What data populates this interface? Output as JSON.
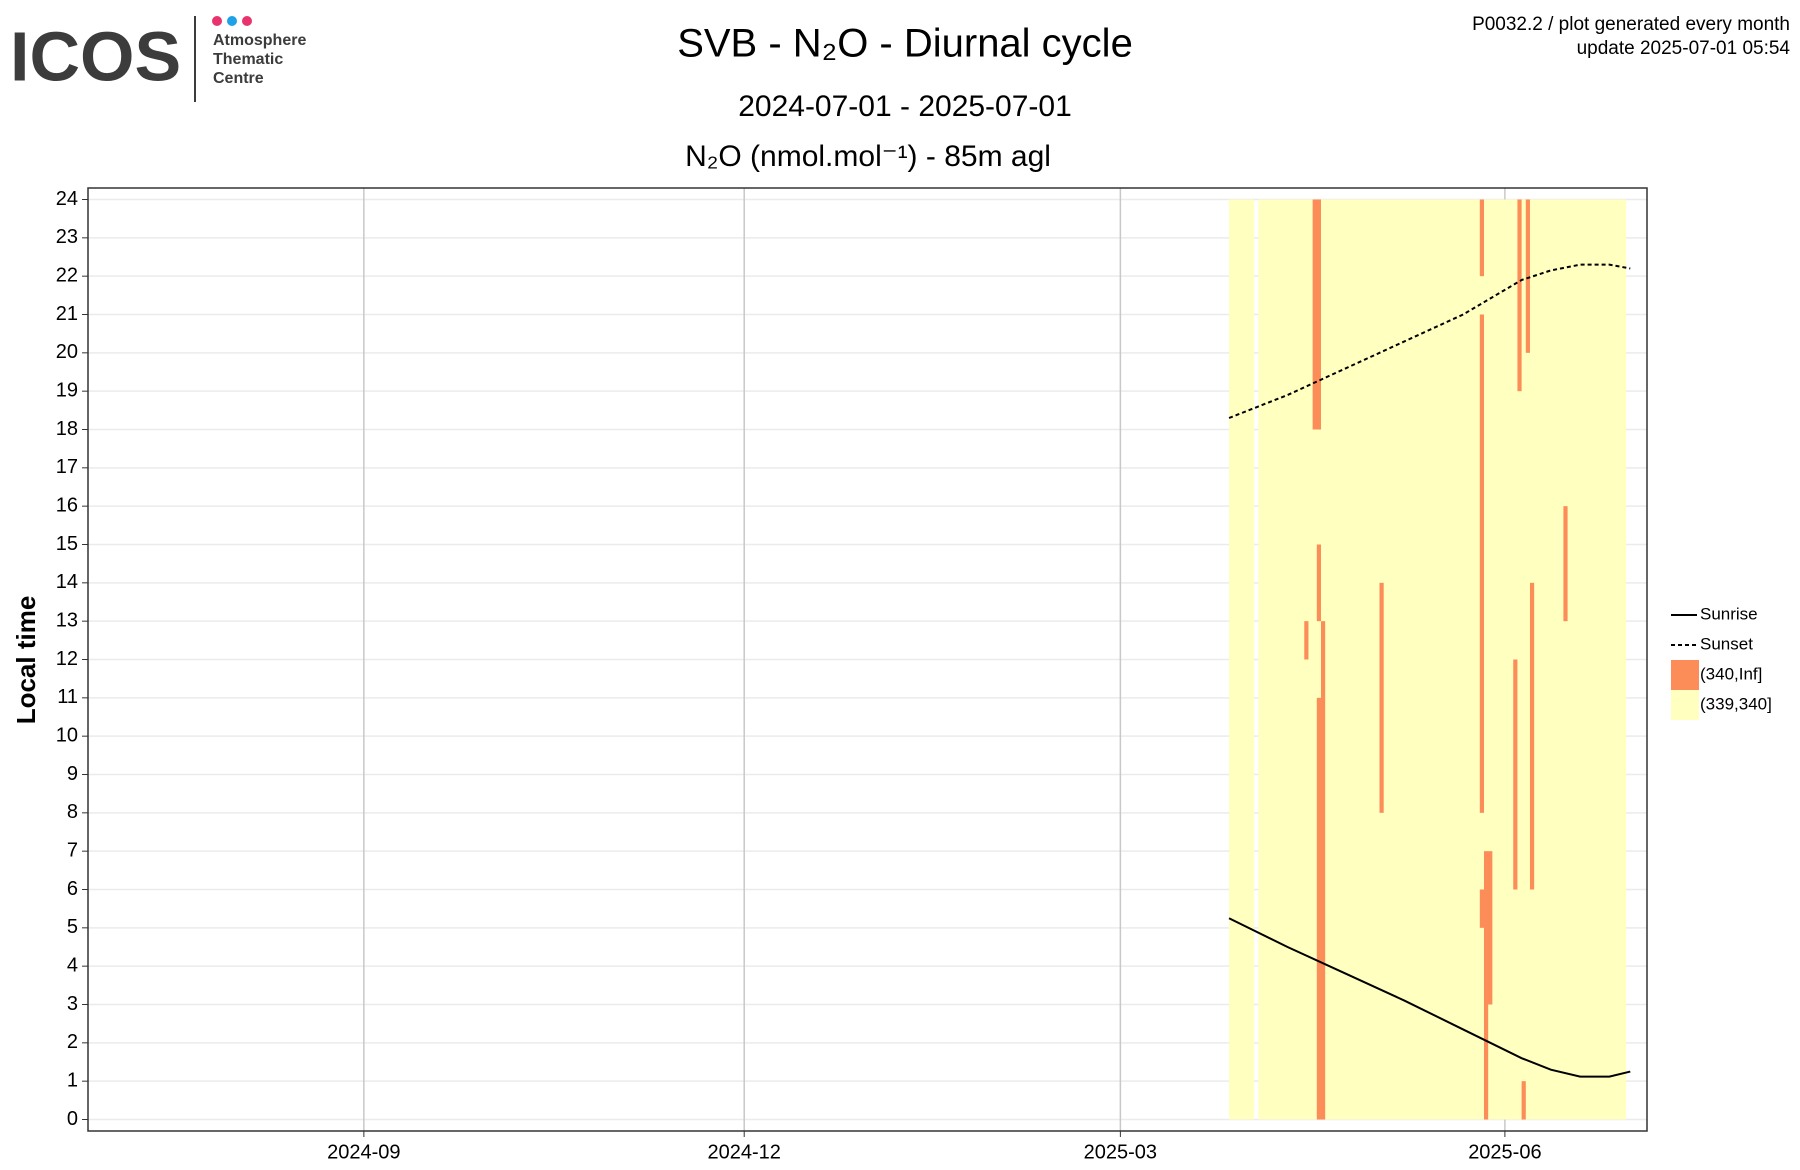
{
  "logo": {
    "name": "ICOS",
    "lines": [
      "Atmosphere",
      "Thematic",
      "Centre"
    ]
  },
  "header": {
    "info": "P0032.2 / plot generated every month",
    "update": "update  2025-07-01 05:54"
  },
  "chart_data": {
    "type": "heatmap",
    "title": "SVB - N₂O - Diurnal cycle",
    "subtitle": "2024-07-01 - 2025-07-01",
    "variable": "N₂O (nmol.mol⁻¹) - 85m agl",
    "y_label": "Local time",
    "xlim": [
      "2024-06-27",
      "2025-07-05"
    ],
    "xticks": [
      "2024-09",
      "2024-12",
      "2025-03",
      "2025-06"
    ],
    "ylim": [
      -0.3,
      24.3
    ],
    "yticks": [
      0,
      1,
      2,
      3,
      4,
      5,
      6,
      7,
      8,
      9,
      10,
      11,
      12,
      13,
      14,
      15,
      16,
      17,
      18,
      19,
      20,
      21,
      22,
      23,
      24
    ],
    "grid": true,
    "series": [
      {
        "name": "(339,340]",
        "color": "#ffffc0",
        "tiles": [
          [
            "2025-03-27",
            "2025-04-02",
            0,
            24
          ],
          [
            "2025-04-03",
            "2025-06-30",
            0,
            24
          ]
        ]
      },
      {
        "name": "(340,Inf]",
        "color": "#fc8d59",
        "tiles": [
          [
            "2025-04-16",
            "2025-04-18",
            18,
            24
          ],
          [
            "2025-04-17",
            "2025-04-18",
            0,
            11
          ],
          [
            "2025-04-18",
            "2025-04-19",
            0,
            13
          ],
          [
            "2025-04-17",
            "2025-04-18",
            13,
            15
          ],
          [
            "2025-04-14",
            "2025-04-15",
            12,
            13
          ],
          [
            "2025-05-02",
            "2025-05-03",
            8,
            14
          ],
          [
            "2025-05-26",
            "2025-05-27",
            8,
            21
          ],
          [
            "2025-05-26",
            "2025-05-27",
            22,
            24
          ],
          [
            "2025-05-27",
            "2025-05-29",
            3,
            7
          ],
          [
            "2025-05-26",
            "2025-05-27",
            5,
            6
          ],
          [
            "2025-05-27",
            "2025-05-28",
            0,
            3
          ],
          [
            "2025-06-03",
            "2025-06-04",
            6,
            12
          ],
          [
            "2025-06-04",
            "2025-06-05",
            19,
            24
          ],
          [
            "2025-06-06",
            "2025-06-07",
            20,
            24
          ],
          [
            "2025-06-07",
            "2025-06-08",
            6,
            14
          ],
          [
            "2025-06-05",
            "2025-06-06",
            0,
            1
          ],
          [
            "2025-06-15",
            "2025-06-16",
            13,
            16
          ]
        ]
      }
    ],
    "lines": [
      {
        "name": "Sunrise",
        "dash": false,
        "color": "#000000",
        "x": [
          "2025-03-27",
          "2025-04-10",
          "2025-04-24",
          "2025-05-08",
          "2025-05-22",
          "2025-06-05",
          "2025-06-12",
          "2025-06-19",
          "2025-06-26",
          "2025-07-01"
        ],
        "values": [
          5.25,
          4.5,
          3.8,
          3.1,
          2.35,
          1.6,
          1.3,
          1.12,
          1.12,
          1.25
        ]
      },
      {
        "name": "Sunset",
        "dash": true,
        "color": "#000000",
        "x": [
          "2025-03-27",
          "2025-04-10",
          "2025-04-24",
          "2025-05-08",
          "2025-05-22",
          "2025-06-05",
          "2025-06-12",
          "2025-06-19",
          "2025-06-26",
          "2025-07-01"
        ],
        "values": [
          18.3,
          18.9,
          19.6,
          20.3,
          21.0,
          21.9,
          22.15,
          22.3,
          22.3,
          22.2
        ]
      }
    ]
  }
}
